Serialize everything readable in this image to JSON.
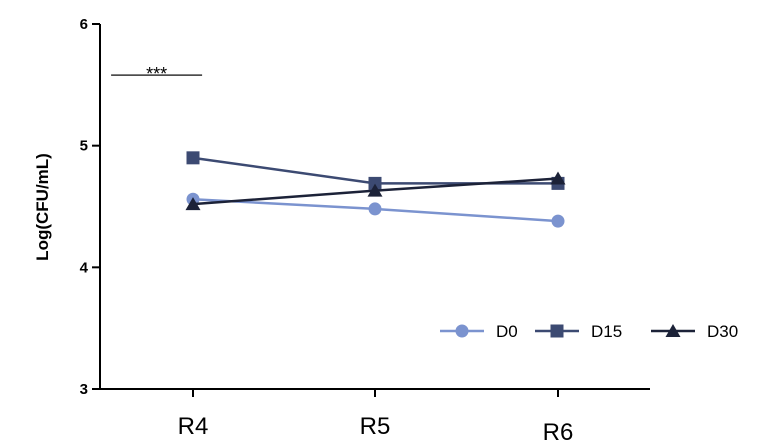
{
  "chart_data": {
    "type": "line",
    "categories": [
      "R4",
      "R5",
      "R6"
    ],
    "ylabel": "Log(CFU/mL)",
    "xlabel": "",
    "ylim": [
      3,
      6
    ],
    "yticks": [
      3,
      4,
      5,
      6
    ],
    "grid": false,
    "legend_position": "bottom-right",
    "series": [
      {
        "name": "D0",
        "values": [
          4.56,
          4.48,
          4.38
        ],
        "color": "#7b93cf",
        "marker": "circle"
      },
      {
        "name": "D15",
        "values": [
          4.9,
          4.69,
          4.69
        ],
        "color": "#3c4a72",
        "marker": "square"
      },
      {
        "name": "D30",
        "values": [
          4.52,
          4.63,
          4.73
        ],
        "color": "#1c2238",
        "marker": "triangle"
      }
    ],
    "annotations": [
      {
        "text": "***",
        "x_from": -0.45,
        "x_to": 0.05,
        "y": 5.58
      }
    ]
  }
}
